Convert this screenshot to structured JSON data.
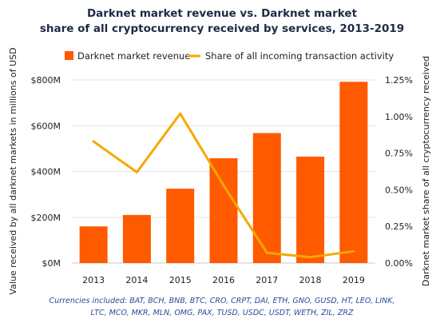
{
  "chart_data": {
    "type": "bar",
    "title_lines": [
      "Darknet market revenue vs. Darknet market",
      "share of all cryptocurrency received by services, 2013-2019"
    ],
    "categories": [
      "2013",
      "2014",
      "2015",
      "2016",
      "2017",
      "2018",
      "2019"
    ],
    "series": [
      {
        "name": "Darknet market revenue",
        "type": "bar",
        "axis": "left",
        "values": [
          160,
          210,
          325,
          458,
          568,
          465,
          792
        ],
        "color": "#ff5a00"
      },
      {
        "name": "Share of all incoming transaction activity",
        "type": "line",
        "axis": "right",
        "values": [
          0.83,
          0.62,
          1.02,
          0.53,
          0.07,
          0.04,
          0.08
        ],
        "color": "#f5a800"
      }
    ],
    "ylabel": "Value received by all darknet markets in millions of USD",
    "y2label": "Darknet market share of all cryptocurrency received",
    "ylim": [
      0,
      800
    ],
    "y2lim": [
      0,
      1.25
    ],
    "yticks": [
      {
        "value": 0,
        "label": "$0M"
      },
      {
        "value": 200,
        "label": "$200M"
      },
      {
        "value": 400,
        "label": "$400M"
      },
      {
        "value": 600,
        "label": "$600M"
      },
      {
        "value": 800,
        "label": "$800M"
      }
    ],
    "y2ticks": [
      {
        "value": 0,
        "label": "0.00%"
      },
      {
        "value": 0.25,
        "label": "0.25%"
      },
      {
        "value": 0.5,
        "label": "0.50%"
      },
      {
        "value": 0.75,
        "label": "0.75%"
      },
      {
        "value": 1.0,
        "label": "1.00%"
      },
      {
        "value": 1.25,
        "label": "1.25%"
      }
    ],
    "grid": true,
    "legend_position": "top",
    "footnote_lines": [
      "Currencies included: BAT, BCH, BNB, BTC, CRO, CRPT, DAI, ETH, GNO, GUSD, HT, LEO, LINK,",
      "LTC, MCO, MKR, MLN, OMG, PAX, TUSD, USDC, USDT, WETH, ZIL, ZRZ"
    ]
  }
}
